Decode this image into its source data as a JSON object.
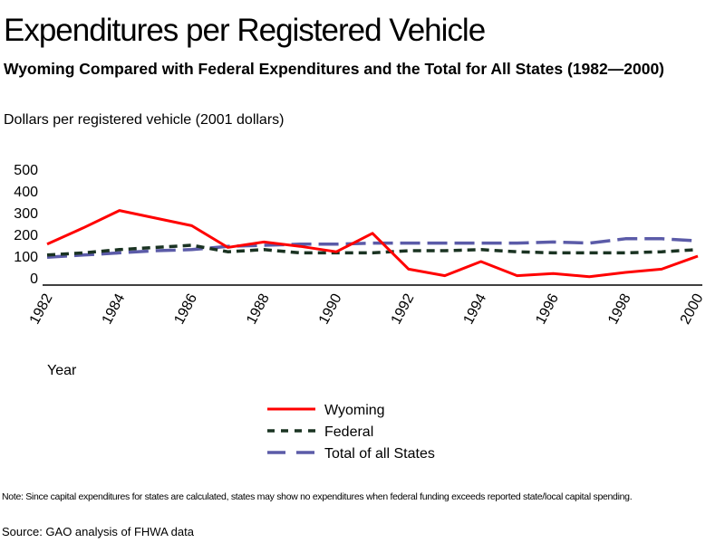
{
  "header": {
    "title": "Expenditures per Registered Vehicle",
    "subtitle": "Wyoming Compared with Federal Expenditures and the Total for All States (1982—2000)",
    "units": "Dollars per registered vehicle (2001 dollars)"
  },
  "footer": {
    "note": "Note:  Since capital expenditures for states are calculated, states may show no expenditures when federal funding exceeds reported state/local capital spending.",
    "source": "Source: GAO analysis of FHWA data"
  },
  "chart_data": {
    "type": "line",
    "title": "Expenditures per Registered Vehicle",
    "xlabel": "Year",
    "ylabel": "Dollars per registered vehicle (2001 dollars)",
    "x": [
      1982,
      1983,
      1984,
      1985,
      1986,
      1987,
      1988,
      1989,
      1990,
      1991,
      1992,
      1993,
      1994,
      1995,
      1996,
      1997,
      1998,
      1999,
      2000
    ],
    "xticks": [
      "1982",
      "1984",
      "1986",
      "1988",
      "1990",
      "1992",
      "1994",
      "1996",
      "1998",
      "2000"
    ],
    "yticks": [
      "0",
      "100",
      "200",
      "300",
      "400",
      "500"
    ],
    "ylim": [
      0,
      500
    ],
    "xlim": [
      1982,
      2000
    ],
    "grid": false,
    "legend_position": "bottom-center",
    "series": [
      {
        "name": "Wyoming",
        "color": "#ff0000",
        "style": "solid",
        "values": [
          155,
          230,
          310,
          275,
          240,
          140,
          165,
          145,
          120,
          205,
          40,
          10,
          75,
          10,
          20,
          5,
          25,
          40,
          100
        ]
      },
      {
        "name": "Federal",
        "color": "#1a3322",
        "style": "short-dash",
        "values": [
          105,
          115,
          130,
          140,
          150,
          120,
          130,
          115,
          115,
          115,
          125,
          125,
          130,
          120,
          115,
          115,
          115,
          120,
          130
        ]
      },
      {
        "name": "Total of all States",
        "color": "#5b5ba8",
        "style": "long-dash",
        "values": [
          95,
          105,
          115,
          125,
          130,
          145,
          150,
          155,
          155,
          160,
          160,
          160,
          160,
          160,
          165,
          160,
          180,
          180,
          170
        ]
      }
    ]
  }
}
